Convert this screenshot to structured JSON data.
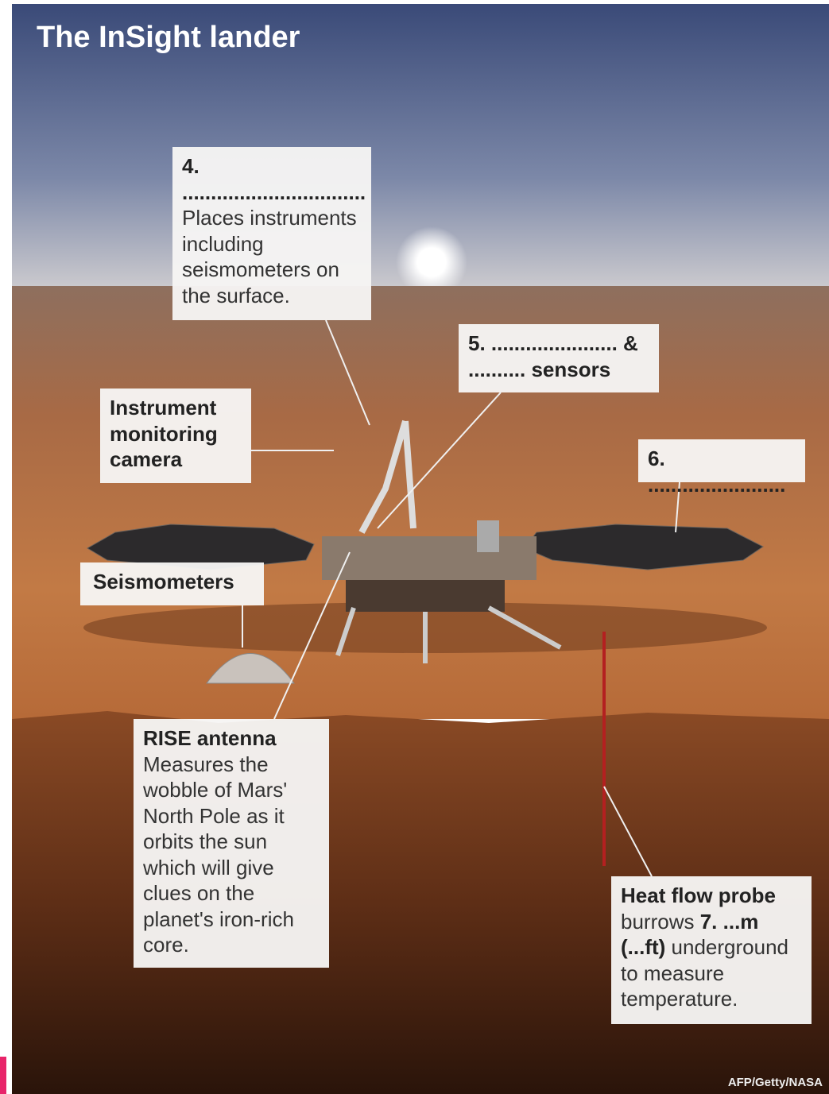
{
  "header": {
    "title": "The InSight lander"
  },
  "callouts": {
    "robotic_arm": {
      "label": "4. ................................",
      "text": "Places instruments including seismometers on the surface."
    },
    "sensors": {
      "label": "5. ...................... & .......... sensors"
    },
    "camera": {
      "label": "Instrument monitoring camera"
    },
    "solar": {
      "label": "6. ........................"
    },
    "seismometers": {
      "label": "Seismometers"
    },
    "rise": {
      "label": "RISE antenna",
      "text": "Measures the wobble of Mars' North Pole as it orbits the sun which will give clues on the planet's iron-rich core."
    },
    "heat": {
      "label": "Heat flow probe",
      "text_before": "burrows",
      "blank": "7. ...m (...ft)",
      "text_after": "underground to measure temperature."
    }
  },
  "credit": "AFP/Getty/NASA"
}
